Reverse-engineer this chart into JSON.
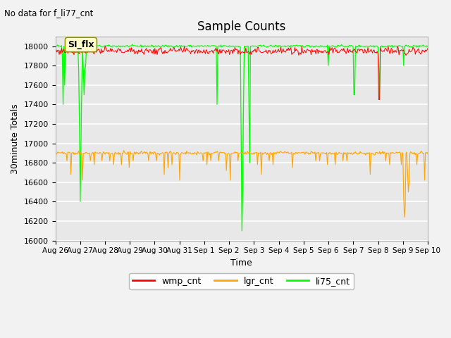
{
  "title": "Sample Counts",
  "top_left_text": "No data for f_li77_cnt",
  "annotation_text": "SI_flx",
  "xlabel": "Time",
  "ylabel": "30minute Totals",
  "ylim": [
    16000,
    18100
  ],
  "background_color": "#e8e8e8",
  "grid_color": "#ffffff",
  "colors": {
    "wmp": "#ff0000",
    "lgr": "#ffa500",
    "li75": "#00ff00"
  },
  "xtick_labels": [
    "Aug 26",
    "Aug 27",
    "Aug 28",
    "Aug 29",
    "Aug 30",
    "Aug 31",
    "Sep 1",
    "Sep 2",
    "Sep 3",
    "Sep 4",
    "Sep 5",
    "Sep 6",
    "Sep 7",
    "Sep 8",
    "Sep 9",
    "Sep 10"
  ],
  "ytick_vals": [
    16000,
    16200,
    16400,
    16600,
    16800,
    17000,
    17200,
    17400,
    17600,
    17800,
    18000
  ],
  "legend_labels": [
    "wmp_cnt",
    "lgr_cnt",
    "li75_cnt"
  ],
  "wmp_base": 17950,
  "lgr_base": 16900,
  "li75_base": 18000,
  "num_points": 480,
  "num_days": 15
}
